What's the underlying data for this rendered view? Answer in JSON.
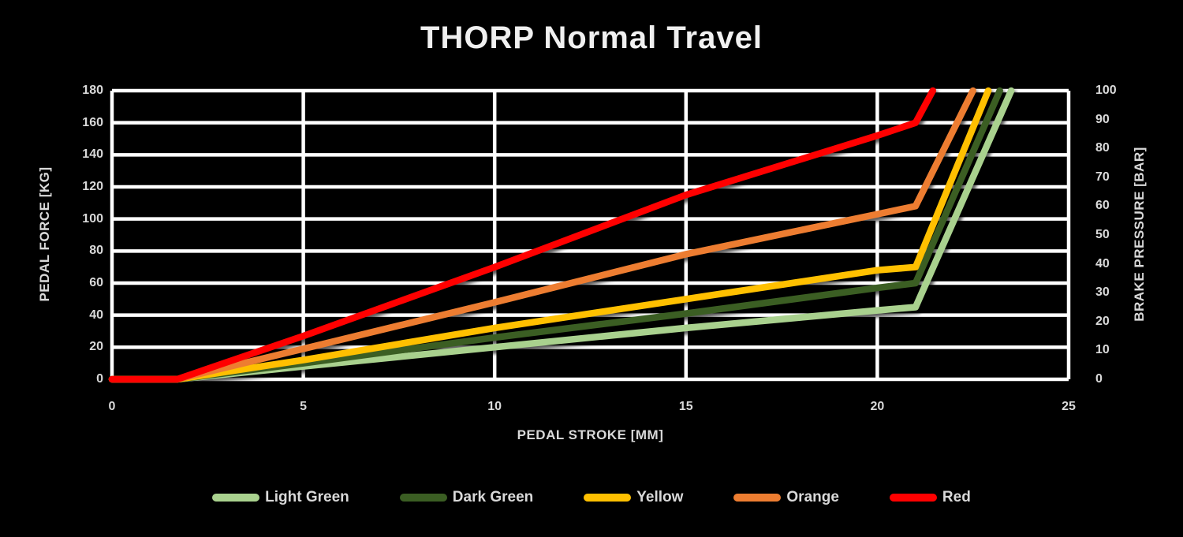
{
  "colors": {
    "background": "#000000",
    "gridline": "#FFFFFF",
    "tick_text": "#D9D9D9",
    "title_text": "#F0F0F0"
  },
  "chart_data": {
    "type": "line",
    "title": "THORP Normal Travel",
    "xlabel": "PEDAL STROKE [MM]",
    "ylabel_left": "PEDAL FORCE [KG]",
    "ylabel_right": "BRAKE PRESSURE [BAR]",
    "grid": true,
    "legend_position": "bottom",
    "x_axis": {
      "min": 0,
      "max": 25,
      "step": 5,
      "ticks": [
        0,
        5,
        10,
        15,
        20,
        25
      ]
    },
    "y_axis_left": {
      "min": 0,
      "max": 180,
      "step": 20,
      "ticks": [
        180,
        160,
        140,
        120,
        100,
        80,
        60,
        40,
        20,
        0
      ]
    },
    "y_axis_right": {
      "min": 0,
      "max": 100,
      "step": 10,
      "ticks": [
        100,
        90,
        80,
        70,
        60,
        50,
        40,
        30,
        20,
        10,
        0
      ]
    },
    "series": [
      {
        "name": "Light Green",
        "color": "#A9D18E",
        "points": [
          [
            0,
            0
          ],
          [
            1.7,
            0
          ],
          [
            5,
            8
          ],
          [
            10,
            20
          ],
          [
            15,
            32
          ],
          [
            20,
            43
          ],
          [
            21,
            45
          ],
          [
            23.5,
            180
          ]
        ]
      },
      {
        "name": "Dark Green",
        "color": "#3B5E23",
        "points": [
          [
            0,
            0
          ],
          [
            1.7,
            0
          ],
          [
            5,
            10
          ],
          [
            10,
            26
          ],
          [
            15,
            41
          ],
          [
            20,
            57
          ],
          [
            21,
            60
          ],
          [
            23.2,
            180
          ]
        ]
      },
      {
        "name": "Yellow",
        "color": "#FFC000",
        "points": [
          [
            0,
            0
          ],
          [
            1.7,
            0
          ],
          [
            5,
            12
          ],
          [
            10,
            32
          ],
          [
            15,
            50
          ],
          [
            20,
            68
          ],
          [
            21,
            70
          ],
          [
            22.9,
            180
          ]
        ]
      },
      {
        "name": "Orange",
        "color": "#ED7D31",
        "points": [
          [
            0,
            0
          ],
          [
            1.7,
            0
          ],
          [
            5,
            19
          ],
          [
            10,
            48
          ],
          [
            15,
            78
          ],
          [
            20,
            103
          ],
          [
            21,
            108
          ],
          [
            22.5,
            180
          ]
        ]
      },
      {
        "name": "Red",
        "color": "#FF0000",
        "points": [
          [
            0,
            0
          ],
          [
            1.7,
            0
          ],
          [
            5,
            27
          ],
          [
            10,
            70
          ],
          [
            15,
            115
          ],
          [
            20,
            152
          ],
          [
            21,
            160
          ],
          [
            21.45,
            180
          ]
        ]
      }
    ]
  }
}
